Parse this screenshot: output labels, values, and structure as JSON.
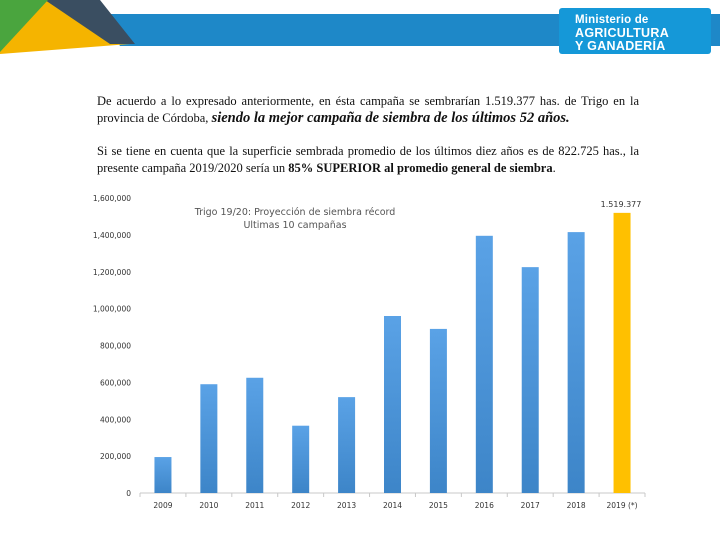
{
  "logo": {
    "line1": "Ministerio de",
    "line2": "AGRICULTURA",
    "line3": "Y GANADERÍA"
  },
  "paragraph1": {
    "text_plain": "De acuerdo a lo expresado anteriormente, en ésta campaña se sembrarían 1.519.377 has. de Trigo en la provincia de Córdoba, ",
    "text_emph": "siendo la mejor campaña de siembra de los últimos 52 años."
  },
  "paragraph2": {
    "text_plain": "Si se tiene en cuenta que la superficie sembrada promedio de los últimos diez años es de 822.725 has., la presente campaña 2019/2020 sería un ",
    "text_strong": "85% SUPERIOR al promedio general de siembra",
    "text_end": "."
  },
  "colors": {
    "bar": "#3d85c8",
    "bar_light": "#5aa2e6",
    "highlight": "#ffc000",
    "header_green": "#4aa53e",
    "header_yellow": "#f5b400",
    "header_slate": "#3a4e61",
    "header_blue": "#1e88c8"
  },
  "chart_data": {
    "type": "bar",
    "title_line1": "Trigo 19/20: Proyección de siembra récord",
    "title_line2": "Ultimas 10 campañas",
    "categories": [
      "2009",
      "2010",
      "2011",
      "2012",
      "2013",
      "2014",
      "2015",
      "2016",
      "2017",
      "2018",
      "2019 (*)"
    ],
    "values": [
      195000,
      590000,
      625000,
      365000,
      520000,
      960000,
      890000,
      1395000,
      1225000,
      1415000,
      1519377
    ],
    "highlight_index": 10,
    "highlight_label": "1.519.377",
    "yticks": [
      0,
      200000,
      400000,
      600000,
      800000,
      1000000,
      1200000,
      1400000,
      1600000
    ],
    "ytick_labels": [
      "0",
      "200,000",
      "400,000",
      "600,000",
      "800,000",
      "1,000,000",
      "1,200,000",
      "1,400,000",
      "1,600,000"
    ],
    "ylim": [
      0,
      1600000
    ],
    "xlabel": "",
    "ylabel": ""
  }
}
